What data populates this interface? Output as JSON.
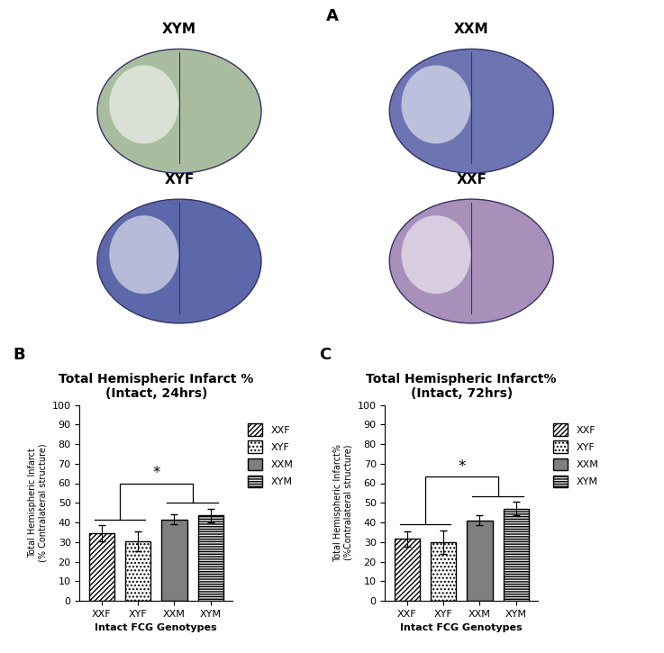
{
  "panel_a": {
    "label": "A",
    "images": [
      "XYM",
      "XXM",
      "XYF",
      "XXF"
    ]
  },
  "chart_data": [
    {
      "type": "bar",
      "panel": "B",
      "title": "Total Hemispheric Infarct %\n(Intact, 24hrs)",
      "y_label": "Total Hemispheric Infarct\n(% Contralateral structure)",
      "x_label": "Intact FCG Genotypes",
      "categories": [
        "XXF",
        "XYF",
        "XXM",
        "XYM"
      ],
      "values": [
        34.5,
        30.5,
        41.5,
        43.5
      ],
      "errors": [
        4,
        5,
        2.5,
        3.5
      ],
      "colors": [
        "#ffffff",
        "#ffffff",
        "#7f7f7f",
        "#e6e6e6"
      ],
      "ylim": [
        0,
        100
      ],
      "yticks": [
        0,
        10,
        20,
        30,
        40,
        50,
        60,
        70,
        80,
        90,
        100
      ],
      "legend": "upper left",
      "annotations": [
        "*"
      ]
    },
    {
      "type": "bar",
      "panel": "C",
      "title": "Total Hemispheric Infarct%\n(Intact, 72hrs)",
      "y_label": "Total Hemispheric Infarct%\n(%Contralateral structure)",
      "x_label": "Intact FCG Genotypes",
      "categories": [
        "XXF",
        "XYF",
        "XXM",
        "XYM"
      ],
      "values": [
        31.5,
        30,
        41,
        47
      ],
      "errors": [
        4,
        6,
        2.5,
        3.5
      ],
      "colors": [
        "#ffffff",
        "#ffffff",
        "#7f7f7f",
        "#e6e6e6"
      ],
      "ylim": [
        0,
        100
      ],
      "yticks": [
        0,
        10,
        20,
        30,
        40,
        50,
        60,
        70,
        80,
        90,
        100
      ],
      "legend": "upper left",
      "annotations": [
        "*"
      ]
    }
  ]
}
